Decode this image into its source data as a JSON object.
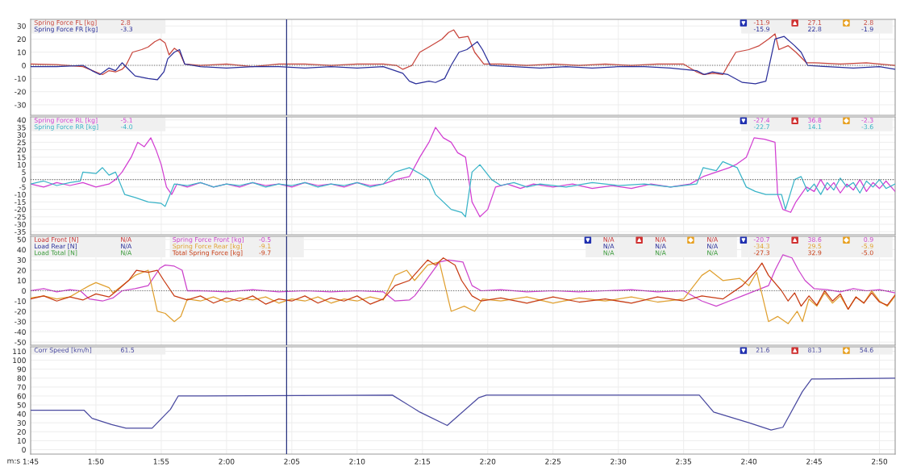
{
  "chart_data": [
    {
      "type": "line",
      "legend": "top left",
      "grid": true,
      "tick_labels": "y",
      "xlim": [
        105,
        171.2
      ],
      "ylim": [
        -38,
        35
      ],
      "xticks": [
        105,
        110,
        115,
        120,
        125,
        130,
        135,
        140,
        145,
        150,
        155,
        160,
        165,
        170
      ],
      "yticks": [
        -30,
        -20,
        -10,
        0,
        10,
        20,
        30
      ],
      "ref_lines": [
        {
          "axis": "y",
          "value": 0,
          "line_style": "dotted",
          "color": "#666666"
        },
        {
          "axis": "x",
          "value": 124.6,
          "color": "#2a3580"
        }
      ],
      "annotations": [
        "2.8",
        "-11.9",
        "27.1",
        "2.8",
        "-3.3",
        "-15.9",
        "22.8",
        "-1.9"
      ],
      "series": [
        {
          "name": "Spring Force FL [kg]",
          "color": "#c8453c",
          "x": [
            105,
            107,
            109,
            110,
            110.5,
            111,
            111.5,
            112,
            112.3,
            112.8,
            113.5,
            114,
            114.5,
            114.9,
            115.3,
            115.6,
            116,
            116.4,
            116.8,
            118,
            120,
            122,
            124,
            126,
            128,
            130,
            132,
            133,
            133.5,
            134.2,
            134.8,
            135.5,
            136.5,
            137,
            137.4,
            137.8,
            138.5,
            139,
            139.7,
            141,
            143,
            145,
            147,
            149,
            151,
            153,
            155,
            156,
            156.5,
            157.3,
            158,
            158.4,
            159,
            160,
            160.8,
            161.5,
            162,
            162.3,
            163,
            163.6,
            164.4,
            165,
            167,
            169,
            171.2
          ],
          "values": [
            1,
            0.5,
            -1,
            -5,
            -7,
            -4,
            -5,
            -3,
            0,
            10,
            12,
            14,
            18,
            20,
            17,
            8,
            13,
            10,
            1,
            0,
            1,
            -1,
            1,
            1,
            0,
            1,
            1,
            0,
            -3,
            0,
            10,
            14,
            20,
            25,
            27,
            21,
            22,
            10,
            1,
            1,
            0,
            1,
            0,
            1,
            0,
            1,
            1,
            -5,
            -7,
            -6,
            -7,
            0,
            10,
            12,
            15,
            20,
            24,
            12,
            15,
            10,
            2,
            2,
            1,
            2,
            0
          ]
        },
        {
          "name": "Spring Force FR [kg]",
          "color": "#2b2f9a",
          "x": [
            105,
            107,
            109,
            109.7,
            110.3,
            111,
            111.5,
            112,
            112.5,
            113,
            114,
            114.7,
            115.2,
            115.5,
            116,
            116.4,
            116.8,
            118,
            120,
            122,
            124,
            126,
            128,
            130,
            132,
            133.5,
            134,
            134.5,
            135.5,
            136,
            136.7,
            137.2,
            137.8,
            138.4,
            139.2,
            139.6,
            140.2,
            142,
            144,
            146,
            148,
            150,
            152,
            154,
            156,
            156.6,
            157.2,
            158.4,
            159.5,
            160.5,
            161.3,
            162,
            162.7,
            163.5,
            164,
            164.5,
            166,
            168,
            170,
            171.2
          ],
          "values": [
            -1,
            -1,
            0,
            -4,
            -7,
            -2,
            -4,
            2,
            -3,
            -8,
            -10,
            -11,
            -5,
            5,
            10,
            12,
            1,
            -1,
            -2,
            -1,
            -1,
            -2,
            -1,
            -2,
            -1,
            -6,
            -12,
            -14,
            -12,
            -13,
            -10,
            0,
            10,
            12,
            18,
            12,
            0,
            -1,
            -2,
            -1,
            -2,
            -1,
            -1,
            -2,
            -4,
            -7,
            -5,
            -7,
            -13,
            -14,
            -12,
            20,
            22,
            15,
            10,
            0,
            -1,
            -2,
            -1,
            -3
          ]
        }
      ]
    },
    {
      "type": "line",
      "legend": "top left",
      "grid": true,
      "tick_labels": "y",
      "xlim": [
        105,
        171.2
      ],
      "ylim": [
        -37,
        42
      ],
      "xticks": [
        105,
        110,
        115,
        120,
        125,
        130,
        135,
        140,
        145,
        150,
        155,
        160,
        165,
        170
      ],
      "yticks": [
        -35,
        -30,
        -25,
        -20,
        -15,
        -10,
        -5,
        0,
        5,
        10,
        15,
        20,
        25,
        30,
        35,
        40
      ],
      "ref_lines": [
        {
          "axis": "y",
          "value": 0,
          "line_style": "dotted",
          "color": "#666666"
        },
        {
          "axis": "x",
          "value": 124.6,
          "color": "#2a3580"
        }
      ],
      "annotations": [
        "-5.1",
        "-27.4",
        "36.8",
        "-2.3",
        "-4.0",
        "-22.7",
        "14.1",
        "-3.6"
      ],
      "series": [
        {
          "name": "Spring Force RL [kg]",
          "color": "#d23fd2",
          "x": [
            105,
            106,
            107,
            108,
            109,
            110,
            111,
            111.5,
            112,
            112.7,
            113.2,
            113.7,
            114.2,
            114.6,
            115,
            115.4,
            115.8,
            116.2,
            117,
            118,
            119,
            120,
            121,
            122,
            123,
            124,
            125,
            126,
            127,
            128,
            129,
            130,
            131,
            132,
            133,
            134,
            134.8,
            135.5,
            136,
            136.6,
            137.2,
            137.7,
            138.3,
            138.8,
            139.4,
            140,
            140.6,
            141.5,
            142.5,
            143.5,
            145,
            146.5,
            148,
            149.5,
            151,
            152.5,
            154,
            155.5,
            156.5,
            157.5,
            158.5,
            159,
            159.8,
            160.4,
            161.2,
            162,
            162.2,
            162.6,
            163.2,
            163.6,
            164.4,
            165,
            165.5,
            166,
            166.5,
            167,
            167.5,
            168,
            168.5,
            169,
            169.5,
            170,
            170.5,
            171.2
          ],
          "values": [
            -3,
            -5,
            -2,
            -4,
            -2,
            -5,
            -3,
            0,
            5,
            15,
            25,
            22,
            28,
            20,
            10,
            -5,
            -10,
            -3,
            -5,
            -2,
            -5,
            -3,
            -5,
            -2,
            -4,
            -3,
            -5,
            -2,
            -4,
            -3,
            -5,
            -2,
            -4,
            -3,
            0,
            2,
            15,
            25,
            35,
            28,
            25,
            18,
            15,
            -15,
            -25,
            -20,
            -5,
            -3,
            -6,
            -3,
            -5,
            -3,
            -6,
            -4,
            -6,
            -3,
            -5,
            -3,
            2,
            5,
            8,
            10,
            15,
            28,
            27,
            25,
            -10,
            -20,
            -22,
            -15,
            -5,
            -8,
            0,
            -7,
            -2,
            -9,
            -3,
            -7,
            0,
            -8,
            -2,
            -6,
            -1,
            -8
          ]
        },
        {
          "name": "Spring Force RR [kg]",
          "color": "#3ab4c8",
          "x": [
            105,
            106,
            107,
            108,
            108.8,
            109,
            110,
            110.5,
            111,
            111.5,
            112.2,
            113,
            114,
            115,
            115.3,
            116,
            117,
            118,
            119,
            120,
            121,
            122,
            123,
            124,
            125,
            126,
            127,
            128,
            129,
            130,
            131,
            132,
            132.9,
            134,
            135,
            135.5,
            136,
            137.2,
            138,
            138.3,
            138.8,
            139.4,
            140.3,
            141,
            142,
            143,
            144,
            146,
            148,
            150,
            152,
            154,
            156,
            156.5,
            157.5,
            158,
            159.1,
            159.8,
            160.5,
            161.3,
            162.5,
            162.8,
            163.5,
            164,
            164.5,
            165,
            165.5,
            166,
            166.5,
            167,
            167.5,
            168,
            168.5,
            169,
            169.5,
            170,
            170.5,
            171.2
          ],
          "values": [
            -3,
            -1,
            -4,
            -2,
            -1,
            5,
            4,
            8,
            3,
            5,
            -10,
            -12,
            -15,
            -16,
            -18,
            -3,
            -4,
            -2,
            -5,
            -3,
            -4,
            -2,
            -5,
            -3,
            -4,
            -2,
            -5,
            -3,
            -4,
            -2,
            -5,
            -3,
            5,
            8,
            3,
            0,
            -10,
            -20,
            -22,
            -25,
            5,
            10,
            0,
            -4,
            -2,
            -5,
            -3,
            -5,
            -2,
            -4,
            -3,
            -5,
            -3,
            8,
            6,
            12,
            8,
            -5,
            -8,
            -10,
            -10,
            -20,
            0,
            2,
            -8,
            -3,
            -10,
            -2,
            -7,
            1,
            -5,
            -2,
            -9,
            -1,
            -5,
            0,
            -6,
            -3
          ]
        }
      ]
    },
    {
      "type": "line",
      "legend": "top left",
      "grid": true,
      "tick_labels": "y",
      "xlim": [
        105,
        171.2
      ],
      "ylim": [
        -53,
        53
      ],
      "xticks": [
        105,
        110,
        115,
        120,
        125,
        130,
        135,
        140,
        145,
        150,
        155,
        160,
        165,
        170
      ],
      "yticks": [
        -50,
        -40,
        -30,
        -20,
        -10,
        0,
        10,
        20,
        30,
        40,
        50
      ],
      "ref_lines": [
        {
          "axis": "y",
          "value": 0,
          "line_style": "dotted",
          "color": "#666666"
        },
        {
          "axis": "x",
          "value": 124.6,
          "color": "#2a3580"
        }
      ],
      "annotations": [
        "N/A",
        "N/A",
        "N/A",
        "N/A",
        "N/A",
        "N/A",
        "N/A",
        "N/A",
        "N/A",
        "N/A",
        "N/A",
        "N/A",
        "-0.5",
        "-20.7",
        "38.6",
        "0.9",
        "-9.1",
        "-34.3",
        "29.5",
        "-5.9",
        "-9.7",
        "-27.3",
        "32.9",
        "-5.0"
      ],
      "series": [
        {
          "name": "Load Front [N]",
          "color": "#c83232"
        },
        {
          "name": "Load Rear [N]",
          "color": "#2b2f9a"
        },
        {
          "name": "Load Total [N]",
          "color": "#3a9a3a"
        },
        {
          "name": "Spring Force Front [kg]",
          "color": "#cc44cc",
          "x": [
            105,
            106,
            107,
            108,
            108.8,
            109.5,
            110.5,
            111.3,
            112,
            113,
            114,
            114.9,
            115.3,
            116,
            116.6,
            117,
            118,
            120,
            122,
            124,
            126,
            128,
            130,
            132,
            132.9,
            134,
            134.4,
            135,
            136.3,
            137,
            138.1,
            138.8,
            139.5,
            141,
            143,
            145,
            147,
            149,
            151,
            153,
            155,
            156.4,
            157.5,
            158.5,
            159.5,
            161.5,
            162,
            162.6,
            163.3,
            163.8,
            164.3,
            165,
            166,
            167,
            168,
            169,
            170,
            171.2
          ],
          "values": [
            0,
            2,
            -1,
            1,
            0,
            -8,
            -10,
            -7,
            0,
            2,
            5,
            22,
            25,
            24,
            20,
            0,
            0,
            -1,
            1,
            -1,
            0,
            -1,
            0,
            -1,
            -10,
            -9,
            -5,
            5,
            28,
            30,
            28,
            5,
            0,
            1,
            -1,
            0,
            -1,
            0,
            1,
            -1,
            0,
            -10,
            -15,
            -10,
            -5,
            5,
            20,
            35,
            32,
            20,
            10,
            2,
            1,
            -1,
            2,
            0,
            1,
            -2
          ]
        },
        {
          "name": "Spring Force Rear [kg]",
          "color": "#e0a030",
          "x": [
            105,
            106,
            107,
            108,
            108.8,
            109.5,
            110,
            111,
            111.3,
            112,
            113,
            114,
            114.7,
            115.3,
            116,
            116.5,
            117,
            118,
            119,
            120,
            121,
            122,
            123,
            124,
            125,
            126,
            127,
            128,
            129,
            130,
            131,
            132,
            132.9,
            133.8,
            134.4,
            135.4,
            136.3,
            137.2,
            138.2,
            139,
            139.6,
            141,
            143,
            145,
            147,
            149,
            151,
            153,
            155,
            156.4,
            157,
            158,
            159.3,
            160,
            160.6,
            161.5,
            162.2,
            163,
            163.7,
            164.1,
            164.6,
            165.2,
            165.8,
            166.4,
            167,
            167.6,
            168.2,
            168.8,
            169.4,
            170,
            170.6,
            171.2
          ],
          "values": [
            -7,
            -5,
            -8,
            -6,
            0,
            5,
            8,
            3,
            -2,
            5,
            15,
            20,
            -20,
            -22,
            -30,
            -25,
            -8,
            -10,
            -6,
            -11,
            -7,
            -9,
            -6,
            -12,
            -8,
            -10,
            -6,
            -12,
            -8,
            -10,
            -6,
            -9,
            15,
            20,
            10,
            25,
            28,
            -20,
            -15,
            -20,
            -8,
            -10,
            -6,
            -12,
            -7,
            -10,
            -6,
            -11,
            -8,
            15,
            20,
            10,
            12,
            5,
            18,
            -30,
            -25,
            -32,
            -20,
            -30,
            -8,
            -15,
            -2,
            -12,
            -5,
            -18,
            -6,
            -12,
            0,
            -10,
            -15,
            -5
          ]
        },
        {
          "name": "Total Spring Force [kg]",
          "color": "#c83c14",
          "x": [
            105,
            106,
            107,
            108,
            109,
            110,
            111,
            111.6,
            112.5,
            113.1,
            114,
            114.7,
            115.2,
            116,
            117,
            118,
            119,
            120,
            121,
            122,
            123,
            124,
            125,
            126,
            127,
            128,
            129,
            130,
            131,
            132,
            132.9,
            134,
            135.4,
            136,
            136.6,
            137.5,
            138,
            138.8,
            139.5,
            141,
            143,
            145,
            147,
            149,
            151,
            153,
            155,
            156.4,
            158,
            159.5,
            160.6,
            161,
            161.5,
            162.5,
            163,
            163.5,
            164,
            164.6,
            165.2,
            165.8,
            166.4,
            167,
            167.6,
            168.2,
            168.8,
            169.4,
            170,
            170.6,
            171.2
          ],
          "values": [
            -8,
            -5,
            -10,
            -6,
            -9,
            -3,
            -6,
            0,
            10,
            20,
            18,
            20,
            10,
            -5,
            -9,
            -5,
            -12,
            -7,
            -10,
            -5,
            -13,
            -8,
            -10,
            -5,
            -12,
            -7,
            -10,
            -5,
            -13,
            -8,
            5,
            10,
            30,
            25,
            32,
            25,
            10,
            -5,
            -10,
            -7,
            -12,
            -6,
            -11,
            -8,
            -12,
            -6,
            -10,
            -5,
            -8,
            5,
            20,
            27,
            15,
            0,
            -10,
            -2,
            -15,
            -5,
            -14,
            0,
            -10,
            -3,
            -18,
            -6,
            -12,
            -2,
            -11,
            -14,
            -4
          ]
        }
      ]
    },
    {
      "type": "line",
      "legend": "top left",
      "grid": true,
      "xlabel": "m:s",
      "xlim": [
        105,
        171.2
      ],
      "ylim": [
        -5,
        115
      ],
      "xticks": [
        {
          "value": 105,
          "label": "1:45"
        },
        {
          "value": 110,
          "label": "1:50"
        },
        {
          "value": 115,
          "label": "1:55"
        },
        {
          "value": 120,
          "label": "2:00"
        },
        {
          "value": 125,
          "label": "2:05"
        },
        {
          "value": 130,
          "label": "2:10"
        },
        {
          "value": 135,
          "label": "2:15"
        },
        {
          "value": 140,
          "label": "2:20"
        },
        {
          "value": 145,
          "label": "2:25"
        },
        {
          "value": 150,
          "label": "2:30"
        },
        {
          "value": 155,
          "label": "2:35"
        },
        {
          "value": 160,
          "label": "2:40"
        },
        {
          "value": 165,
          "label": "2:45"
        },
        {
          "value": 170,
          "label": "2:50"
        }
      ],
      "yticks": [
        0,
        10,
        20,
        30,
        40,
        50,
        60,
        70,
        80,
        90,
        100,
        110
      ],
      "ref_lines": [
        {
          "axis": "x",
          "value": 124.6,
          "color": "#2a3580"
        }
      ],
      "annotations": [
        "61.5",
        "21.6",
        "81.3",
        "54.6"
      ],
      "series": [
        {
          "name": "Corr Speed [km/h]",
          "color": "#4a4aa0",
          "x": [
            105,
            109.1,
            109.7,
            111.2,
            112.3,
            114.3,
            115.7,
            116.3,
            132.7,
            134.8,
            136.9,
            139.3,
            139.9,
            156.2,
            157.3,
            160,
            161.7,
            162.6,
            164.1,
            164.8,
            171.2
          ],
          "values": [
            44,
            44,
            35,
            28,
            24,
            24,
            45,
            60,
            61,
            42,
            27,
            58,
            61,
            61,
            42,
            30,
            22,
            25,
            65,
            79,
            80
          ]
        }
      ]
    }
  ]
}
